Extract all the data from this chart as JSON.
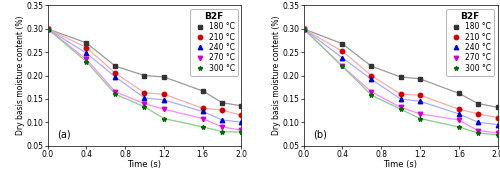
{
  "title": "B2F",
  "xlabel": "Time (s)",
  "ylabel": "Dry basis moisture content (%)",
  "xlim": [
    0.0,
    2.0
  ],
  "ylim": [
    0.05,
    0.35
  ],
  "yticks": [
    0.05,
    0.1,
    0.15,
    0.2,
    0.25,
    0.3,
    0.35
  ],
  "xticks": [
    0.0,
    0.4,
    0.8,
    1.2,
    1.6,
    2.0
  ],
  "panel_a_label": "(a)",
  "panel_b_label": "(b)",
  "series": [
    {
      "label": "180 °C",
      "color": "#999999",
      "marker": "s",
      "marker_color": "#333333",
      "data_a": [
        [
          0.0,
          0.3
        ],
        [
          0.4,
          0.27
        ],
        [
          0.7,
          0.22
        ],
        [
          1.0,
          0.2
        ],
        [
          1.2,
          0.197
        ],
        [
          1.6,
          0.167
        ],
        [
          1.8,
          0.142
        ],
        [
          2.0,
          0.135
        ]
      ],
      "data_b": [
        [
          0.0,
          0.3
        ],
        [
          0.4,
          0.268
        ],
        [
          0.7,
          0.22
        ],
        [
          1.0,
          0.197
        ],
        [
          1.2,
          0.193
        ],
        [
          1.6,
          0.162
        ],
        [
          1.8,
          0.14
        ],
        [
          2.0,
          0.132
        ]
      ]
    },
    {
      "label": "210 °C",
      "color": "#ffaaaa",
      "marker": "o",
      "marker_color": "#cc0000",
      "data_a": [
        [
          0.0,
          0.3
        ],
        [
          0.4,
          0.26
        ],
        [
          0.7,
          0.205
        ],
        [
          1.0,
          0.163
        ],
        [
          1.2,
          0.16
        ],
        [
          1.6,
          0.13
        ],
        [
          1.8,
          0.126
        ],
        [
          2.0,
          0.115
        ]
      ],
      "data_b": [
        [
          0.0,
          0.3
        ],
        [
          0.4,
          0.252
        ],
        [
          0.7,
          0.2
        ],
        [
          1.0,
          0.16
        ],
        [
          1.2,
          0.158
        ],
        [
          1.6,
          0.128
        ],
        [
          1.8,
          0.118
        ],
        [
          2.0,
          0.11
        ]
      ]
    },
    {
      "label": "240 °C",
      "color": "#aaaaff",
      "marker": "^",
      "marker_color": "#0000cc",
      "data_a": [
        [
          0.0,
          0.3
        ],
        [
          0.4,
          0.248
        ],
        [
          0.7,
          0.197
        ],
        [
          1.0,
          0.152
        ],
        [
          1.2,
          0.148
        ],
        [
          1.6,
          0.123
        ],
        [
          1.8,
          0.105
        ],
        [
          2.0,
          0.1
        ]
      ],
      "data_b": [
        [
          0.0,
          0.3
        ],
        [
          0.4,
          0.238
        ],
        [
          0.7,
          0.192
        ],
        [
          1.0,
          0.15
        ],
        [
          1.2,
          0.145
        ],
        [
          1.6,
          0.118
        ],
        [
          1.8,
          0.1
        ],
        [
          2.0,
          0.095
        ]
      ]
    },
    {
      "label": "270 °C",
      "color": "#ff88ff",
      "marker": "v",
      "marker_color": "#cc00cc",
      "data_a": [
        [
          0.0,
          0.3
        ],
        [
          0.4,
          0.235
        ],
        [
          0.7,
          0.165
        ],
        [
          1.0,
          0.14
        ],
        [
          1.2,
          0.128
        ],
        [
          1.6,
          0.108
        ],
        [
          1.8,
          0.09
        ],
        [
          2.0,
          0.083
        ]
      ],
      "data_b": [
        [
          0.0,
          0.3
        ],
        [
          0.4,
          0.22
        ],
        [
          0.7,
          0.165
        ],
        [
          1.0,
          0.132
        ],
        [
          1.2,
          0.118
        ],
        [
          1.6,
          0.105
        ],
        [
          1.8,
          0.082
        ],
        [
          2.0,
          0.077
        ]
      ]
    },
    {
      "label": "300 °C",
      "color": "#88cc88",
      "marker": "*",
      "marker_color": "#006600",
      "data_a": [
        [
          0.0,
          0.3
        ],
        [
          0.4,
          0.23
        ],
        [
          0.7,
          0.16
        ],
        [
          1.0,
          0.133
        ],
        [
          1.2,
          0.108
        ],
        [
          1.6,
          0.09
        ],
        [
          1.8,
          0.08
        ],
        [
          2.0,
          0.079
        ]
      ],
      "data_b": [
        [
          0.0,
          0.3
        ],
        [
          0.4,
          0.22
        ],
        [
          0.7,
          0.158
        ],
        [
          1.0,
          0.128
        ],
        [
          1.2,
          0.108
        ],
        [
          1.6,
          0.09
        ],
        [
          1.8,
          0.077
        ],
        [
          2.0,
          0.073
        ]
      ]
    }
  ]
}
